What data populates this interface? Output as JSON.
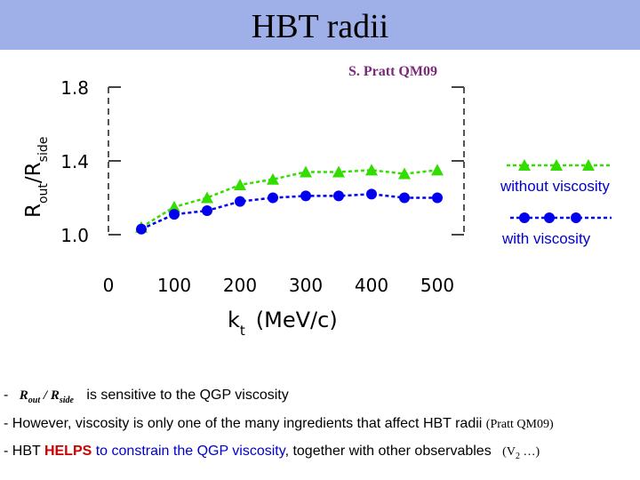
{
  "slide": {
    "title": "HBT radii",
    "credit": "S. Pratt QM09"
  },
  "legend": {
    "without": "without viscosity",
    "with": "with viscosity"
  },
  "notes": {
    "line1_dash": "-",
    "line1_ratio_R1": "R",
    "line1_ratio_sub1": "out",
    "line1_ratio_slash": " / ",
    "line1_ratio_R2": "R",
    "line1_ratio_sub2": "side",
    "line1_text": "is sensitive to  the QGP viscosity",
    "line2_text": "- However, viscosity is only one of the many ingredients that affect HBT radii",
    "line2_ref": "(Pratt QM09)",
    "line3_a": "- HBT ",
    "line3_helps": "HELPS",
    "line3_b": " to constrain the QGP viscosity",
    "line3_c": ", together with other observables",
    "line3_v": "(V",
    "line3_v_sub": "2",
    "line3_end": " …)"
  },
  "chart_data": {
    "type": "line",
    "title": "",
    "xlabel": "k",
    "xlabel_sub": "t",
    "xlabel_unit": "(MeV/c)",
    "ylabel": "R",
    "ylabel_sub1": "out",
    "ylabel_mid": "/R",
    "ylabel_sub2": "side",
    "xlim": [
      0,
      550
    ],
    "ylim": [
      0.9,
      1.9
    ],
    "xticks": [
      0,
      100,
      200,
      300,
      400,
      500
    ],
    "yticks": [
      1.0,
      1.4,
      1.8
    ],
    "xtick_labels": [
      "0",
      "100",
      "200",
      "300",
      "400",
      "500"
    ],
    "ytick_labels": [
      "1.0",
      "1.4",
      "1.8"
    ],
    "series": [
      {
        "name": "without viscosity",
        "color": "#33dd00",
        "marker": "triangle",
        "x": [
          50,
          100,
          150,
          200,
          250,
          300,
          350,
          400,
          450,
          500
        ],
        "y": [
          1.04,
          1.15,
          1.2,
          1.27,
          1.3,
          1.34,
          1.34,
          1.35,
          1.33,
          1.35
        ]
      },
      {
        "name": "with viscosity",
        "color": "#0000ee",
        "marker": "circle",
        "x": [
          50,
          100,
          150,
          200,
          250,
          300,
          350,
          400,
          450,
          500
        ],
        "y": [
          1.03,
          1.11,
          1.13,
          1.18,
          1.2,
          1.21,
          1.21,
          1.22,
          1.2,
          1.2
        ]
      }
    ]
  }
}
